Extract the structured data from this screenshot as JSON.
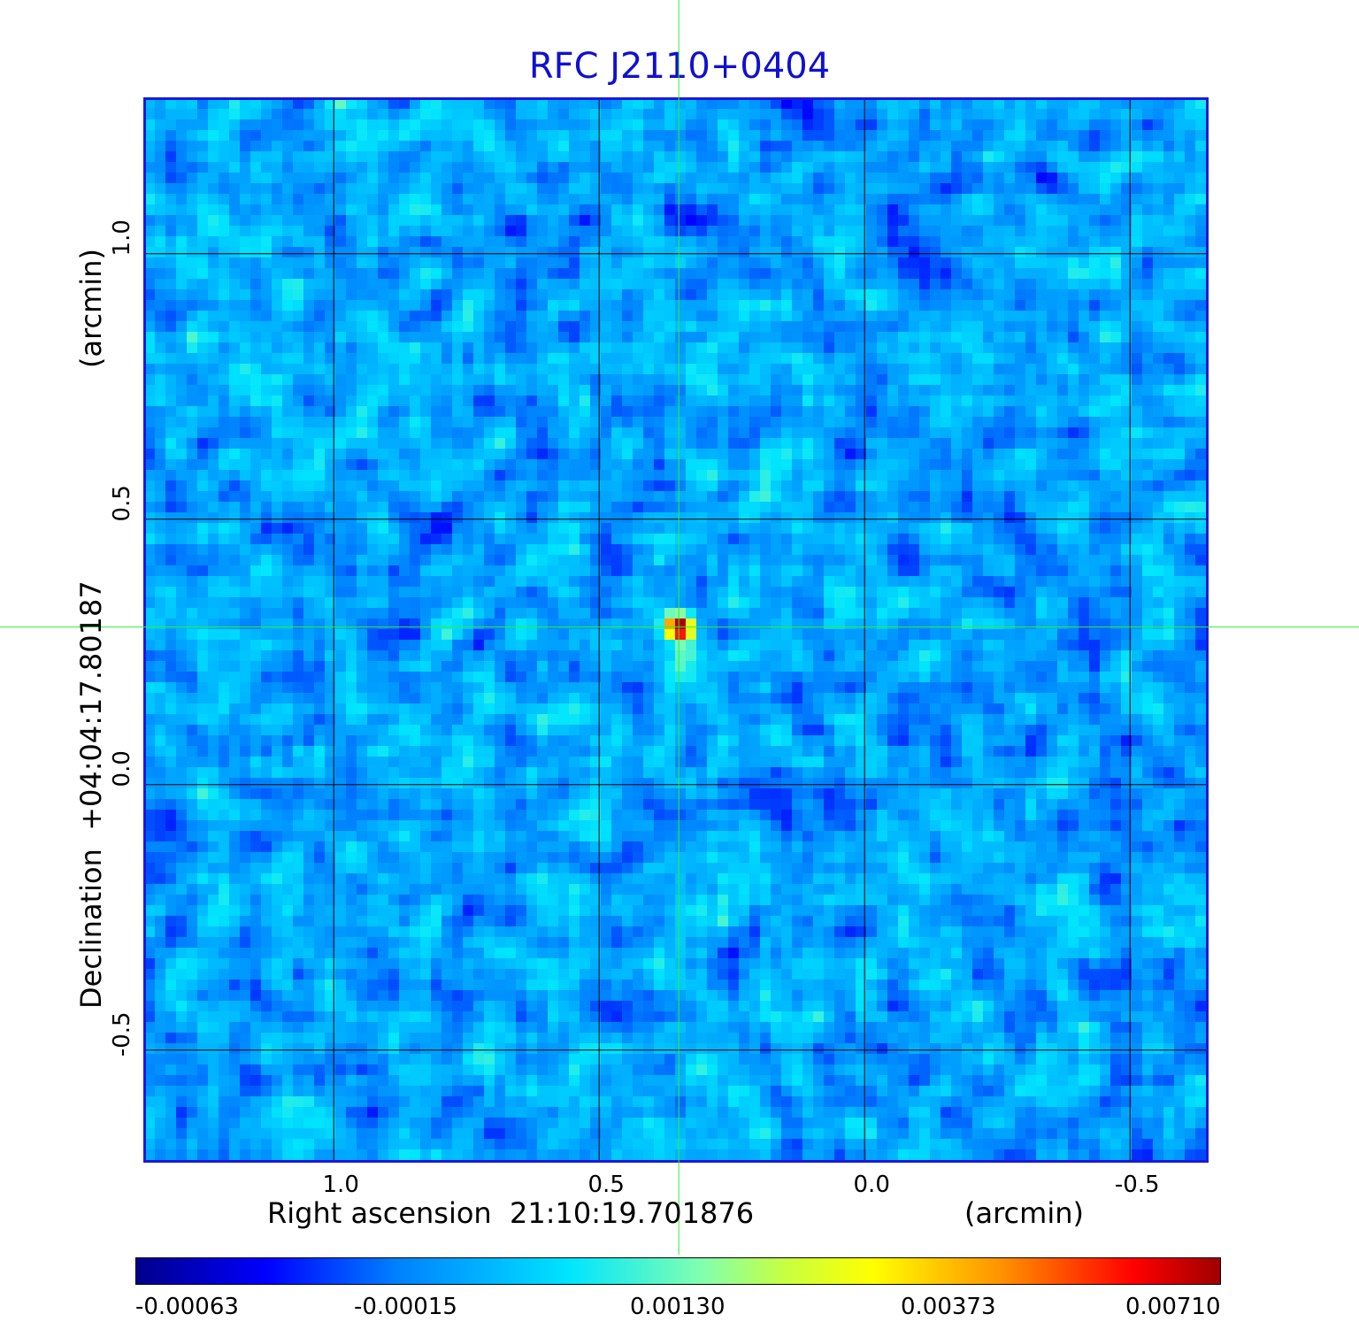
{
  "chart_data": {
    "type": "heatmap",
    "title": "RFC J2110+0404",
    "xlabel": "Right ascension  21:10:19.701876",
    "xunit": "(arcmin)",
    "ylabel": "Declination  +04:04:17.80187",
    "yunit": "(arcmin)",
    "x_ticks": [
      {
        "value": 1.0,
        "label": "1.0"
      },
      {
        "value": 0.5,
        "label": "0.5"
      },
      {
        "value": 0.0,
        "label": "0.0"
      },
      {
        "value": -0.5,
        "label": "-0.5"
      }
    ],
    "y_ticks": [
      {
        "value": 1.0,
        "label": "1.0"
      },
      {
        "value": 0.5,
        "label": "0.5"
      },
      {
        "value": 0.0,
        "label": "0.0"
      },
      {
        "value": -0.5,
        "label": "-0.5"
      }
    ],
    "xlim": [
      1.357,
      -0.643
    ],
    "ylim": [
      -0.707,
      1.293
    ],
    "grid": true,
    "crosshair": {
      "x": 0.35,
      "y": 0.297
    },
    "source_peak": {
      "x": 0.35,
      "y": 0.297,
      "value": 0.0071
    },
    "colorbar": {
      "min": -0.00063,
      "max": 0.0071,
      "ticks": [
        "-0.00063",
        "-0.00015",
        "0.00130",
        "0.00373",
        "0.00710"
      ],
      "placement": "bottom"
    },
    "colors": {
      "frame": "#1a1ad8",
      "title": "#1010d0",
      "grid": "#000000",
      "crosshair": "#33ee33"
    }
  }
}
